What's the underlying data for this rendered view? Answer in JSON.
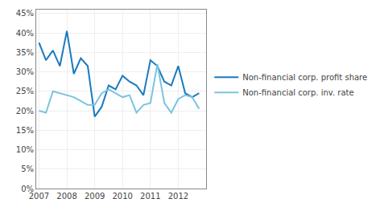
{
  "chart_data": {
    "type": "line",
    "x": [
      2007.0,
      2007.25,
      2007.5,
      2007.75,
      2008.0,
      2008.25,
      2008.5,
      2008.75,
      2009.0,
      2009.25,
      2009.5,
      2009.75,
      2010.0,
      2010.25,
      2010.5,
      2010.75,
      2011.0,
      2011.25,
      2011.5,
      2011.75,
      2012.0,
      2012.25,
      2012.5,
      2012.75
    ],
    "series": [
      {
        "name": "Non-financial corp. profit share",
        "color": "#1a7abf",
        "values": [
          0.375,
          0.33,
          0.355,
          0.315,
          0.405,
          0.295,
          0.335,
          0.315,
          0.185,
          0.21,
          0.265,
          0.255,
          0.29,
          0.275,
          0.265,
          0.24,
          0.33,
          0.315,
          0.275,
          0.265,
          0.315,
          0.245,
          0.235,
          0.245
        ]
      },
      {
        "name": "Non-financial corp. inv. rate",
        "color": "#7ac4e0",
        "values": [
          0.2,
          0.195,
          0.25,
          0.245,
          0.24,
          0.235,
          0.225,
          0.215,
          0.215,
          0.245,
          0.255,
          0.245,
          0.235,
          0.24,
          0.195,
          0.215,
          0.22,
          0.32,
          0.22,
          0.195,
          0.23,
          0.24,
          0.235,
          0.205
        ]
      }
    ],
    "xlim": [
      2006.9,
      2013.0
    ],
    "xticks": [
      2007,
      2008,
      2009,
      2010,
      2011,
      2012
    ],
    "ylim": [
      0.0,
      0.46
    ],
    "yticks": [
      {
        "value": 0.0,
        "label": "0%"
      },
      {
        "value": 0.05,
        "label": "5%"
      },
      {
        "value": 0.1,
        "label": "10%"
      },
      {
        "value": 0.15,
        "label": "15%"
      },
      {
        "value": 0.2,
        "label": "20%"
      },
      {
        "value": 0.25,
        "label": "25%"
      },
      {
        "value": 0.3,
        "label": "30%"
      },
      {
        "value": 0.35,
        "label": "35%"
      },
      {
        "value": 0.4,
        "label": "40%"
      },
      {
        "value": 0.45,
        "label": "45%"
      }
    ],
    "grid": true,
    "legend": "right"
  }
}
